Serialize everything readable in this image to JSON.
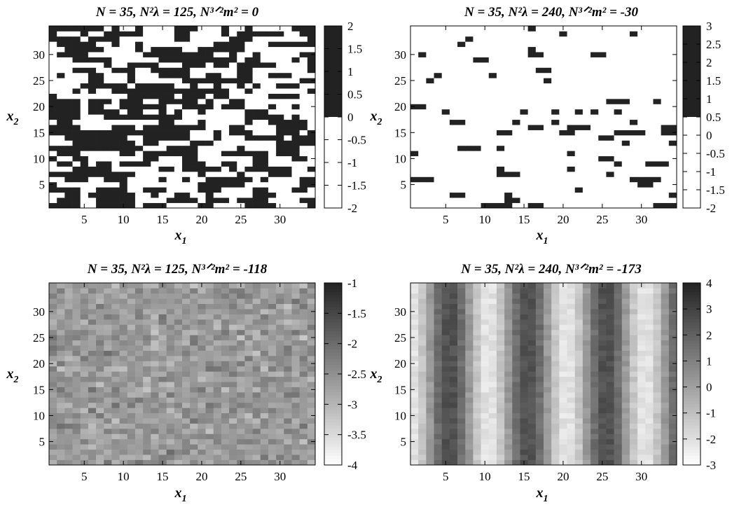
{
  "chart_data": [
    {
      "type": "heatmap",
      "title": "N = 35,  N²λ = 125,  N³ᐟ²m² = 0",
      "xlabel": "x1",
      "ylabel": "x2",
      "xticks": [
        5,
        10,
        15,
        20,
        25,
        30
      ],
      "yticks": [
        5,
        10,
        15,
        20,
        25,
        30
      ],
      "xlim": [
        0.5,
        34.5
      ],
      "ylim": [
        0.5,
        35.5
      ],
      "grid_size": [
        34,
        35
      ],
      "colorbar": {
        "min": -2,
        "max": 2,
        "ticks": [
          "2",
          "1.5",
          "1",
          "0.5",
          "0",
          "-0.5",
          "-1",
          "-1.5",
          "-2"
        ],
        "mode": "binary",
        "threshold": 0,
        "colors": [
          "#ffffff",
          "#222222"
        ]
      },
      "field": {
        "kind": "binary",
        "fill_fraction": 0.52,
        "seed": 11,
        "corr": 0.35,
        "horizontal_bias": 0.6
      }
    },
    {
      "type": "heatmap",
      "title": "N = 35,  N²λ = 240,  N³ᐟ²m² = -30",
      "xlabel": "x1",
      "ylabel": "x2",
      "xticks": [
        5,
        10,
        15,
        20,
        25,
        30
      ],
      "yticks": [
        5,
        10,
        15,
        20,
        25,
        30
      ],
      "xlim": [
        0.5,
        34.5
      ],
      "ylim": [
        0.5,
        35.5
      ],
      "grid_size": [
        34,
        35
      ],
      "colorbar": {
        "min": -2,
        "max": 3,
        "ticks": [
          "3",
          "2.5",
          "2",
          "1.5",
          "1",
          "0.5",
          "0",
          "-0.5",
          "-1",
          "-1.5",
          "-2"
        ],
        "mode": "binary",
        "threshold": 0.5,
        "colors": [
          "#ffffff",
          "#222222"
        ]
      },
      "field": {
        "kind": "binary",
        "fill_fraction": 0.11,
        "seed": 29,
        "corr": 0.25,
        "horizontal_bias": 0.7
      }
    },
    {
      "type": "heatmap",
      "title": "N = 35,  N²λ = 125,  N³ᐟ²m² = -118",
      "xlabel": "x1",
      "ylabel": "x2",
      "xticks": [
        5,
        10,
        15,
        20,
        25,
        30
      ],
      "yticks": [
        5,
        10,
        15,
        20,
        25,
        30
      ],
      "xlim": [
        0.5,
        34.5
      ],
      "ylim": [
        0.5,
        35.5
      ],
      "grid_size": [
        34,
        35
      ],
      "colorbar": {
        "min": -4,
        "max": -1,
        "ticks": [
          "-1",
          "-1.5",
          "-2",
          "-2.5",
          "-3",
          "-3.5",
          "-4"
        ],
        "mode": "gray",
        "colors": [
          "#ffffff",
          "#222222"
        ]
      },
      "field": {
        "kind": "noise",
        "mean": -2.6,
        "spread": 0.3,
        "seed": 47
      }
    },
    {
      "type": "heatmap",
      "title": "N = 35,  N²λ = 240,  N³ᐟ²m² = -173",
      "xlabel": "x1",
      "ylabel": "x2",
      "xticks": [
        5,
        10,
        15,
        20,
        25,
        30
      ],
      "yticks": [
        5,
        10,
        15,
        20,
        25,
        30
      ],
      "xlim": [
        0.5,
        34.5
      ],
      "ylim": [
        0.5,
        35.5
      ],
      "grid_size": [
        34,
        35
      ],
      "colorbar": {
        "min": -3,
        "max": 4,
        "ticks": [
          "4",
          "3",
          "2",
          "1",
          "0",
          "-1",
          "-2",
          "-3"
        ],
        "mode": "gray",
        "colors": [
          "#ffffff",
          "#222222"
        ]
      },
      "field": {
        "kind": "stripes",
        "period": 10,
        "phase": 0.5,
        "amplitude": 2.4,
        "offset": 0.2,
        "noise": 0.35,
        "seed": 83
      }
    }
  ]
}
